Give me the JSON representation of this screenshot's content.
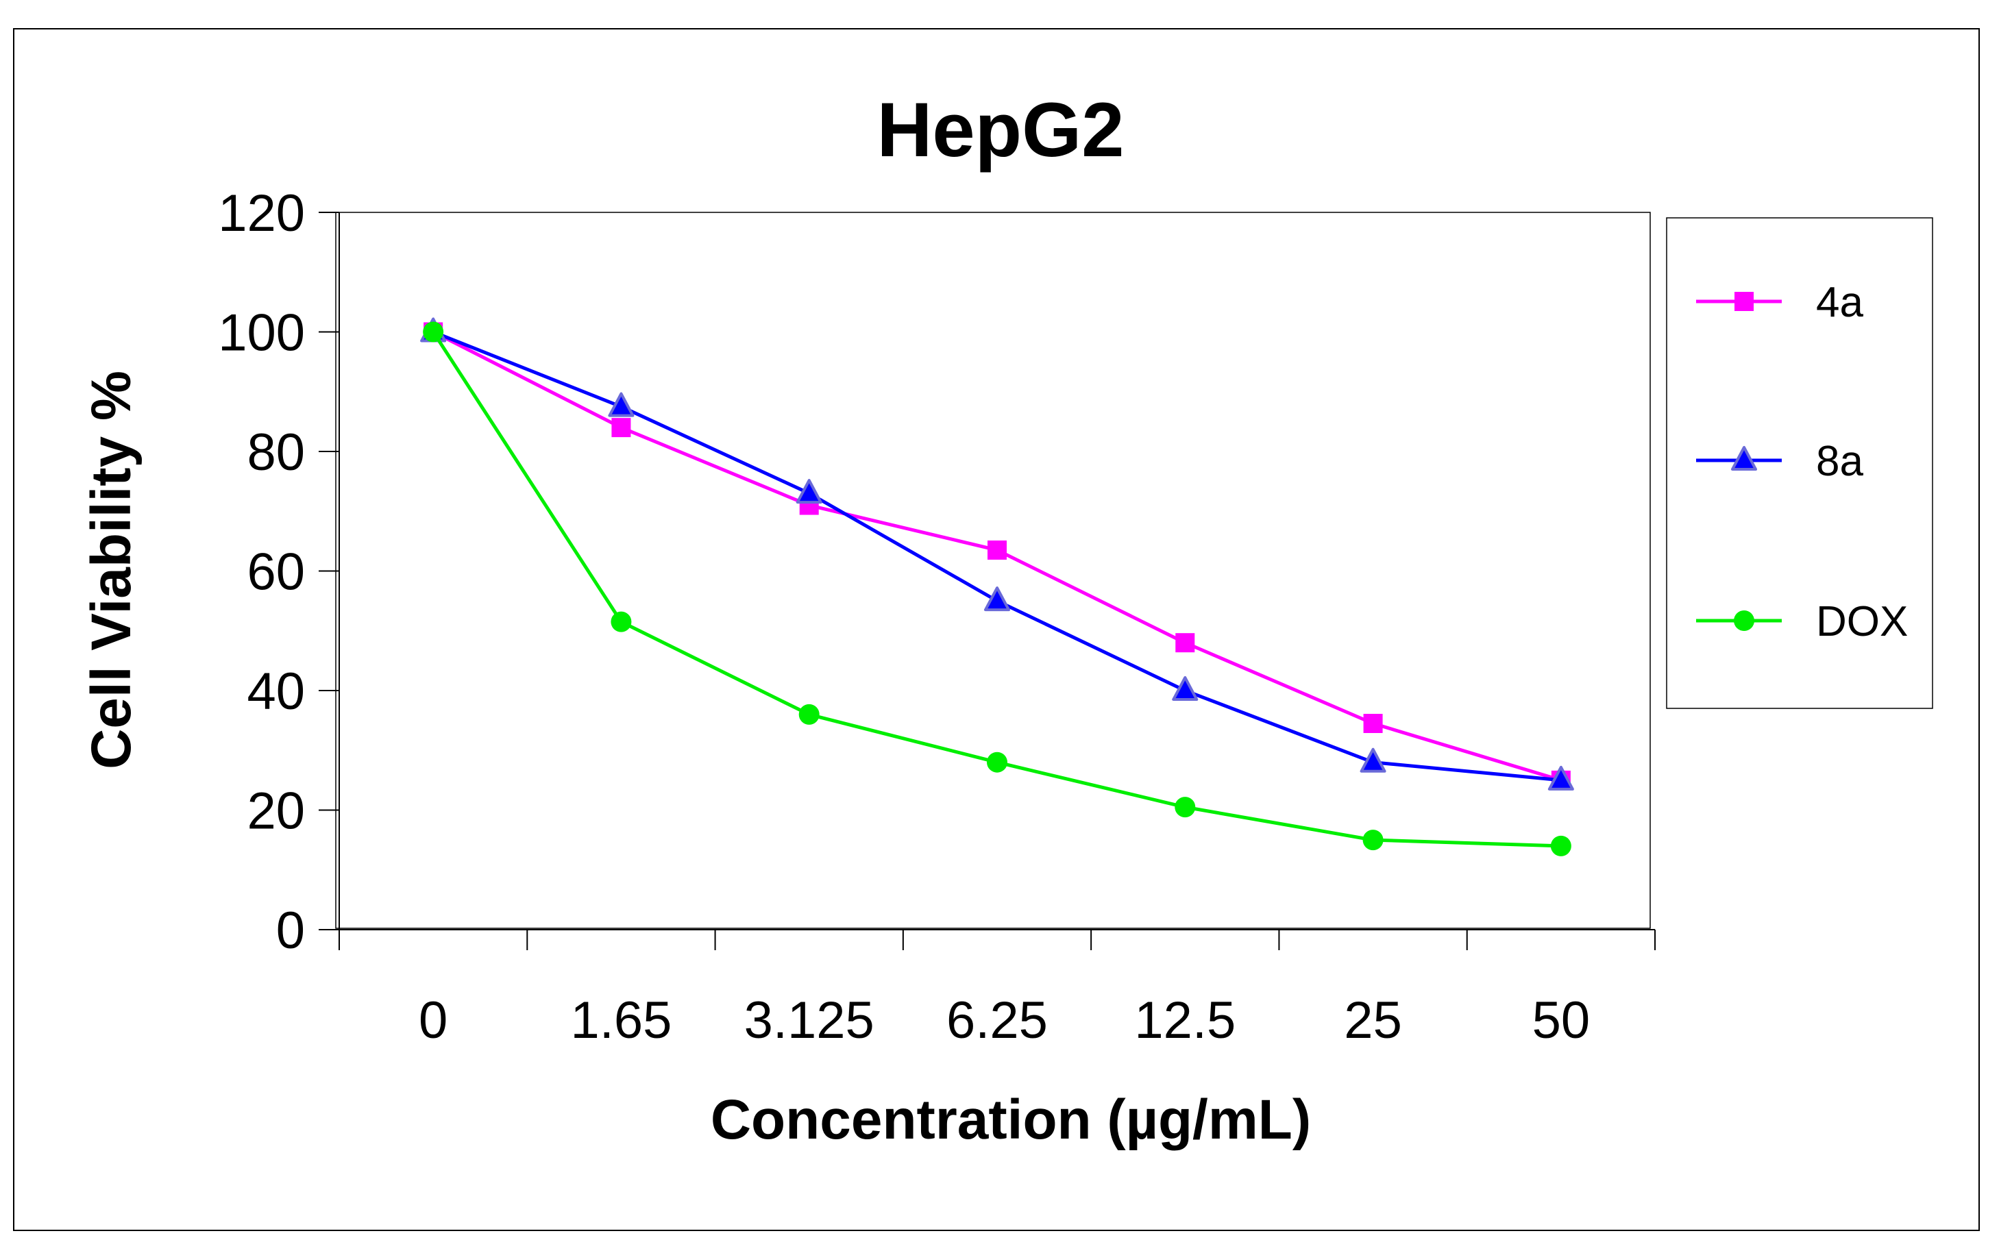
{
  "chart_data": {
    "type": "line",
    "title": "HepG2",
    "xlabel": "Concentration (µg/mL)",
    "ylabel": "Cell Viability %",
    "categories": [
      "0",
      "1.65",
      "3.125",
      "6.25",
      "12.5",
      "25",
      "50"
    ],
    "ylim": [
      0,
      120
    ],
    "yticks": [
      0,
      20,
      40,
      60,
      80,
      100,
      120
    ],
    "grid": false,
    "legend_position": "right",
    "series": [
      {
        "name": "4a",
        "color": "#ff00ff",
        "marker": "square",
        "values": [
          100,
          84,
          71,
          63.5,
          48,
          34.5,
          25
        ]
      },
      {
        "name": "8a",
        "color": "#0000ff",
        "marker": "triangle",
        "values": [
          100,
          87.5,
          73,
          55,
          40,
          28,
          25
        ]
      },
      {
        "name": "DOX",
        "color": "#00ee00",
        "marker": "circle",
        "values": [
          100,
          51.5,
          36,
          28,
          20.5,
          15,
          14
        ]
      }
    ]
  }
}
